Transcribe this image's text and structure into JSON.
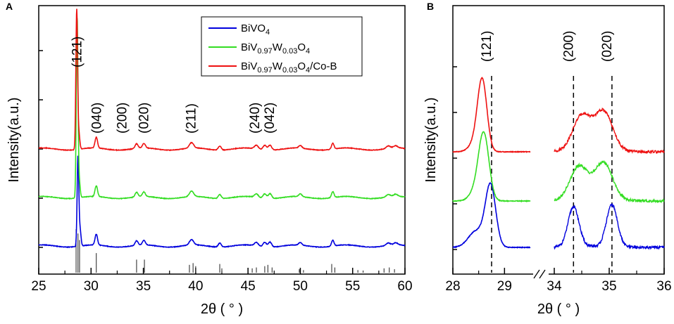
{
  "chart_data": [
    {
      "panel": "A",
      "type": "line",
      "xlabel": "2θ ( ° )",
      "ylabel": "Intensity(a.u.)",
      "xlim": [
        25,
        60
      ],
      "x_ticks": [
        "25",
        "30",
        "35",
        "40",
        "45",
        "50",
        "55",
        "60"
      ],
      "legend": {
        "placement": "top-center",
        "entries": [
          {
            "label": "BiVO",
            "sub": "4",
            "color": "#0000dd"
          },
          {
            "label": "BiV",
            "sub": "0.97",
            "label2": "W",
            "sub2": "0.03",
            "label3": "O",
            "sub3": "4",
            "color": "#33dd22"
          },
          {
            "label": "BiV",
            "sub": "0.97",
            "label2": "W",
            "sub2": "0.03",
            "label3": "O",
            "sub3": "4",
            "label4": "/Co-B",
            "color": "#ee1111"
          }
        ]
      },
      "peak_labels": [
        {
          "text": "(121)",
          "x": 28.6
        },
        {
          "text": "(040)",
          "x": 30.5
        },
        {
          "text": "(200)",
          "x": 32.9
        },
        {
          "text": "(020)",
          "x": 35.0
        },
        {
          "text": "(211)",
          "x": 39.5
        },
        {
          "text": "(240)",
          "x": 45.6
        },
        {
          "text": "(042)",
          "x": 47.0
        }
      ],
      "reference_peaks": [
        {
          "x": 28.57,
          "h": 1.0
        },
        {
          "x": 28.75,
          "h": 0.9
        },
        {
          "x": 28.9,
          "h": 0.75
        },
        {
          "x": 30.5,
          "h": 0.45
        },
        {
          "x": 34.35,
          "h": 0.3
        },
        {
          "x": 35.1,
          "h": 0.3
        },
        {
          "x": 39.4,
          "h": 0.18
        },
        {
          "x": 39.75,
          "h": 0.22
        },
        {
          "x": 40.0,
          "h": 0.15
        },
        {
          "x": 42.3,
          "h": 0.2
        },
        {
          "x": 42.5,
          "h": 0.1
        },
        {
          "x": 45.4,
          "h": 0.1
        },
        {
          "x": 45.8,
          "h": 0.12
        },
        {
          "x": 46.6,
          "h": 0.15
        },
        {
          "x": 46.9,
          "h": 0.18
        },
        {
          "x": 47.3,
          "h": 0.12
        },
        {
          "x": 49.9,
          "h": 0.08
        },
        {
          "x": 50.3,
          "h": 0.06
        },
        {
          "x": 53.0,
          "h": 0.2
        },
        {
          "x": 53.3,
          "h": 0.12
        },
        {
          "x": 55.5,
          "h": 0.06
        },
        {
          "x": 56.0,
          "h": 0.05
        },
        {
          "x": 58.0,
          "h": 0.1
        },
        {
          "x": 58.5,
          "h": 0.12
        },
        {
          "x": 59.0,
          "h": 0.08
        }
      ],
      "peaks": [
        {
          "x": 28.75,
          "height": 0.75,
          "width": 0.09
        },
        {
          "x": 28.95,
          "height": 0.18,
          "width": 0.09
        },
        {
          "x": 30.5,
          "height": 0.12,
          "width": 0.12
        },
        {
          "x": 34.35,
          "height": 0.05,
          "width": 0.14
        },
        {
          "x": 35.05,
          "height": 0.05,
          "width": 0.14
        },
        {
          "x": 39.6,
          "height": 0.06,
          "width": 0.2
        },
        {
          "x": 42.3,
          "height": 0.045,
          "width": 0.14
        },
        {
          "x": 45.8,
          "height": 0.04,
          "width": 0.18
        },
        {
          "x": 46.6,
          "height": 0.05,
          "width": 0.16
        },
        {
          "x": 47.1,
          "height": 0.055,
          "width": 0.16
        },
        {
          "x": 50.0,
          "height": 0.03,
          "width": 0.15
        },
        {
          "x": 53.1,
          "height": 0.065,
          "width": 0.12
        },
        {
          "x": 58.4,
          "height": 0.028,
          "width": 0.2
        },
        {
          "x": 59.1,
          "height": 0.025,
          "width": 0.2
        }
      ],
      "series": [
        {
          "name": "BiVO4",
          "color": "#0000dd",
          "offset": 0.0,
          "main_peak": 1.0,
          "p121_shift": 0.0
        },
        {
          "name": "BiV0.97W0.03O4",
          "color": "#33dd22",
          "offset": 1.0,
          "main_peak": 2.0,
          "p121_shift": -0.08
        },
        {
          "name": "BiV0.97W0.03O4/Co-B",
          "color": "#ee1111",
          "offset": 2.0,
          "main_peak": 1.55,
          "p121_shift": -0.12
        }
      ]
    },
    {
      "panel": "B",
      "type": "line",
      "xlabel": "2θ ( ° )",
      "ylabel": "Intensity(a.u.)",
      "axis_break": true,
      "x_ticks": [
        "28",
        "29",
        "34",
        "35",
        "36"
      ],
      "peak_labels": [
        {
          "text": "(121)",
          "x": 28.75
        },
        {
          "text": "(200)",
          "x": 34.35
        },
        {
          "text": "(020)",
          "x": 35.05
        }
      ],
      "reference_lines": [
        28.75,
        34.35,
        35.05
      ],
      "segment_left": {
        "xlim": [
          28,
          29.5
        ]
      },
      "segment_right": {
        "xlim": [
          34,
          36
        ]
      },
      "series": [
        {
          "name": "BiVO4",
          "color": "#0000dd",
          "offset": 0.0,
          "left": [
            {
              "x": 28.73,
              "h": 0.95,
              "w": 0.1
            },
            {
              "x": 28.45,
              "h": 0.25,
              "w": 0.15
            }
          ],
          "right": [
            {
              "x": 34.35,
              "h": 0.62,
              "w": 0.1
            },
            {
              "x": 35.05,
              "h": 0.65,
              "w": 0.1
            }
          ]
        },
        {
          "name": "BiV0.97W0.03O4",
          "color": "#33dd22",
          "offset": 1.0,
          "left": [
            {
              "x": 28.6,
              "h": 1.0,
              "w": 0.1
            },
            {
              "x": 28.45,
              "h": 0.15,
              "w": 0.12
            }
          ],
          "right": [
            {
              "x": 34.45,
              "h": 0.5,
              "w": 0.16
            },
            {
              "x": 34.9,
              "h": 0.55,
              "w": 0.16
            }
          ]
        },
        {
          "name": "BiV0.97W0.03O4/Co-B",
          "color": "#ee1111",
          "offset": 2.0,
          "left": [
            {
              "x": 28.57,
              "h": 1.05,
              "w": 0.09
            },
            {
              "x": 28.45,
              "h": 0.15,
              "w": 0.12
            }
          ],
          "right": [
            {
              "x": 34.5,
              "h": 0.52,
              "w": 0.16
            },
            {
              "x": 34.9,
              "h": 0.58,
              "w": 0.16
            }
          ]
        }
      ]
    }
  ]
}
